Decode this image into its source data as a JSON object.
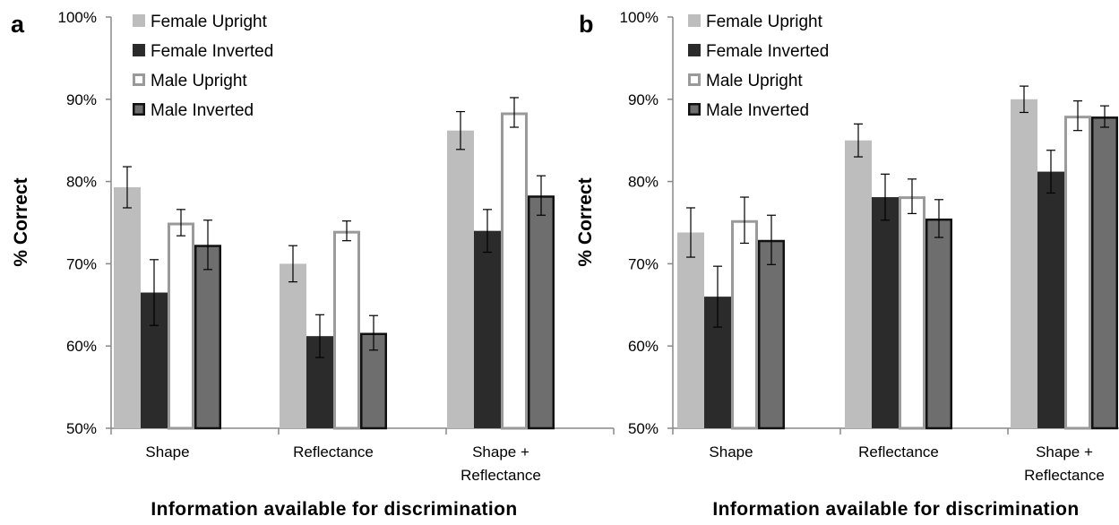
{
  "panel_letters": [
    "a",
    "b"
  ],
  "colors": {
    "female_upright_fill": "#bdbdbd",
    "female_inverted_fill": "#2b2b2b",
    "male_upright_fill": "#ffffff",
    "male_upright_stroke": "#9a9a9a",
    "male_inverted_fill": "#6e6e6e",
    "male_inverted_stroke": "#111111"
  },
  "chart_data": [
    {
      "type": "bar",
      "panel": "a",
      "title": "",
      "xlabel": "Information available for discrimination",
      "ylabel": "% Correct",
      "ylim": [
        50,
        100
      ],
      "yticks": [
        "50%",
        "60%",
        "70%",
        "80%",
        "90%",
        "100%"
      ],
      "categories": [
        [
          "Shape"
        ],
        [
          "Reflectance"
        ],
        [
          "Shape +",
          "Reflectance"
        ]
      ],
      "legend_position": "top-left",
      "series": [
        {
          "name": "Female Upright",
          "values": [
            79.3,
            70.0,
            86.2
          ],
          "errors": [
            2.5,
            2.2,
            2.3
          ]
        },
        {
          "name": "Female Inverted",
          "values": [
            66.5,
            61.2,
            74.0
          ],
          "errors": [
            4.0,
            2.6,
            2.6
          ]
        },
        {
          "name": "Male Upright",
          "values": [
            75.0,
            74.0,
            88.4
          ],
          "errors": [
            1.6,
            1.2,
            1.8
          ]
        },
        {
          "name": "Male Inverted",
          "values": [
            72.3,
            61.6,
            78.3
          ],
          "errors": [
            3.0,
            2.1,
            2.4
          ]
        }
      ]
    },
    {
      "type": "bar",
      "panel": "b",
      "title": "",
      "xlabel": "Information available for discrimination",
      "ylabel": "% Correct",
      "ylim": [
        50,
        100
      ],
      "yticks": [
        "50%",
        "60%",
        "70%",
        "80%",
        "90%",
        "100%"
      ],
      "categories": [
        [
          "Shape"
        ],
        [
          "Reflectance"
        ],
        [
          "Shape +",
          "Reflectance"
        ]
      ],
      "legend_position": "top-left",
      "series": [
        {
          "name": "Female Upright",
          "values": [
            73.8,
            85.0,
            90.0
          ],
          "errors": [
            3.0,
            2.0,
            1.6
          ]
        },
        {
          "name": "Female Inverted",
          "values": [
            66.0,
            78.1,
            81.2
          ],
          "errors": [
            3.7,
            2.8,
            2.6
          ]
        },
        {
          "name": "Male Upright",
          "values": [
            75.3,
            78.2,
            88.0
          ],
          "errors": [
            2.8,
            2.1,
            1.8
          ]
        },
        {
          "name": "Male Inverted",
          "values": [
            72.9,
            75.5,
            87.9
          ],
          "errors": [
            3.0,
            2.3,
            1.3
          ]
        }
      ]
    }
  ]
}
